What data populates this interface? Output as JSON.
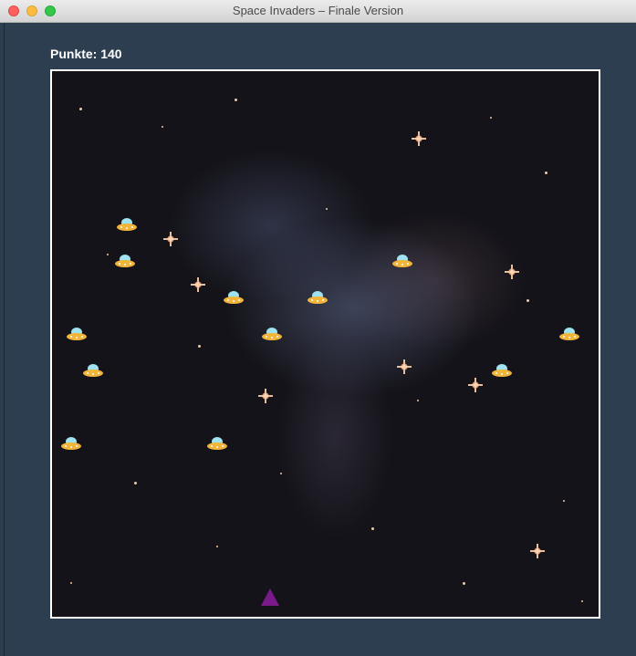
{
  "window": {
    "title": "Space Invaders – Finale Version"
  },
  "hud": {
    "score_text": "Punkte: 140"
  },
  "game": {
    "invader_icon": "ufo-icon",
    "player_icon": "triangle-ship-icon",
    "colors": {
      "background": "#2c3e50",
      "field_border": "#ffffff",
      "player": "#7a1a8a",
      "ufo_dome": "#9ee3f2",
      "ufo_hull": "#f3b43a"
    }
  }
}
